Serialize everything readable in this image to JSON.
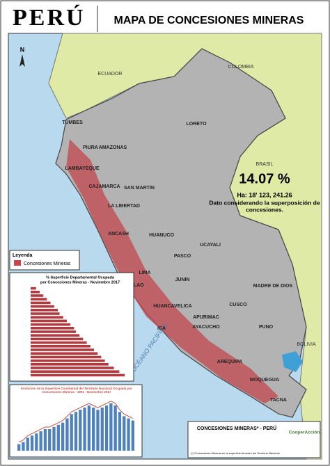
{
  "header": {
    "country": "PERÚ",
    "title": "MAPA DE CONCESIONES MINERAS"
  },
  "map": {
    "north": "N",
    "countries": [
      "ECUADOR",
      "COLOMBIA",
      "BRASIL",
      "BOLIVIA"
    ],
    "ocean": "OCÉANO PACÍFICO",
    "regions": [
      "TUMBES",
      "PIURA",
      "AMAZONAS",
      "LORETO",
      "LAMBAYEQUE",
      "CAJAMARCA",
      "SAN MARTIN",
      "LA LIBERTAD",
      "ANCASH",
      "HUANUCO",
      "UCAYALI",
      "PASCO",
      "JUNIN",
      "LIMA",
      "CALLAO",
      "MADRE DE DIOS",
      "CUSCO",
      "HUANCAVELICA",
      "ICA",
      "AYACUCHO",
      "APURIMAC",
      "PUNO",
      "AREQUIPA",
      "MOQUEGUA",
      "TACNA"
    ]
  },
  "stat": {
    "percent": "14.07 %",
    "area": "Ha: 18' 123, 241.26",
    "note_1": "Dato considerando la superposición de",
    "note_2": "concesiones."
  },
  "legend": {
    "title": "Leyenda",
    "item": "Concesiones Mineras",
    "color": "#c2474f"
  },
  "bar_inset": {
    "title_1": "% Superficie Departamental Ocupada",
    "title_2": "por Concesiones Mineras - Noviembre 2017",
    "color": "#b23a3f",
    "values": [
      3,
      5,
      7,
      9,
      11,
      13,
      15,
      16,
      18,
      20,
      22,
      24,
      25,
      27,
      29,
      31,
      33,
      35,
      37,
      39,
      41,
      43,
      46,
      49,
      52
    ]
  },
  "line_inset": {
    "title": "Evolución de la Superficie Continental del Territorio Nacional Ocupada por Concesiones Mineras - 1991 - Noviembre 2017",
    "color": "#4f81bd",
    "line_color": "#c0504d",
    "values": [
      3,
      4,
      6,
      7,
      8,
      9,
      10,
      10,
      11,
      12,
      13,
      15,
      17,
      18,
      19,
      20,
      21,
      20,
      19,
      20,
      21,
      22,
      21,
      18,
      16,
      15,
      14
    ]
  },
  "footer": {
    "title": "CONCESIONES MINERAS* - PERÚ",
    "org": "CooperAcción",
    "note": "(*) Concesiones Mineras en la superficie terrestre del Territorio Nacional"
  }
}
